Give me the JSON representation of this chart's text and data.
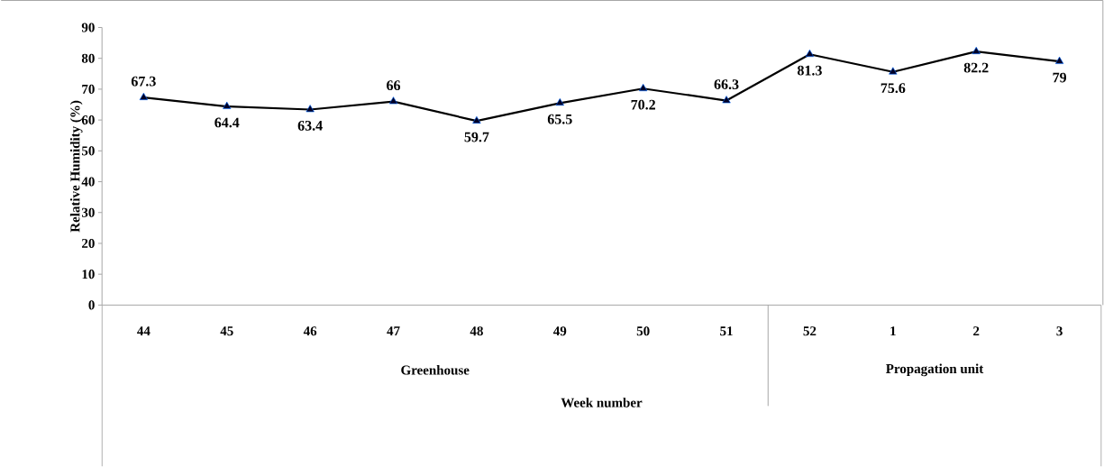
{
  "chart_data": {
    "type": "line",
    "xlabel": "Week number",
    "ylabel": "Relative Humidity (%)",
    "categories": [
      "44",
      "45",
      "46",
      "47",
      "48",
      "49",
      "50",
      "51",
      "52",
      "1",
      "2",
      "3"
    ],
    "series": [
      {
        "color": "#000000",
        "values": [
          67.3,
          64.4,
          63.4,
          66,
          59.7,
          65.5,
          70.2,
          66.3,
          81.3,
          75.6,
          82.2,
          79
        ]
      }
    ],
    "ylim": [
      0,
      90
    ],
    "yticks": [
      0,
      10,
      20,
      30,
      40,
      50,
      60,
      70,
      80,
      90
    ],
    "marker": "triangle",
    "line_style": "solid",
    "data_labels": true,
    "grid": false,
    "annotations": [
      "Greenhouse",
      "Propagation unit"
    ]
  }
}
